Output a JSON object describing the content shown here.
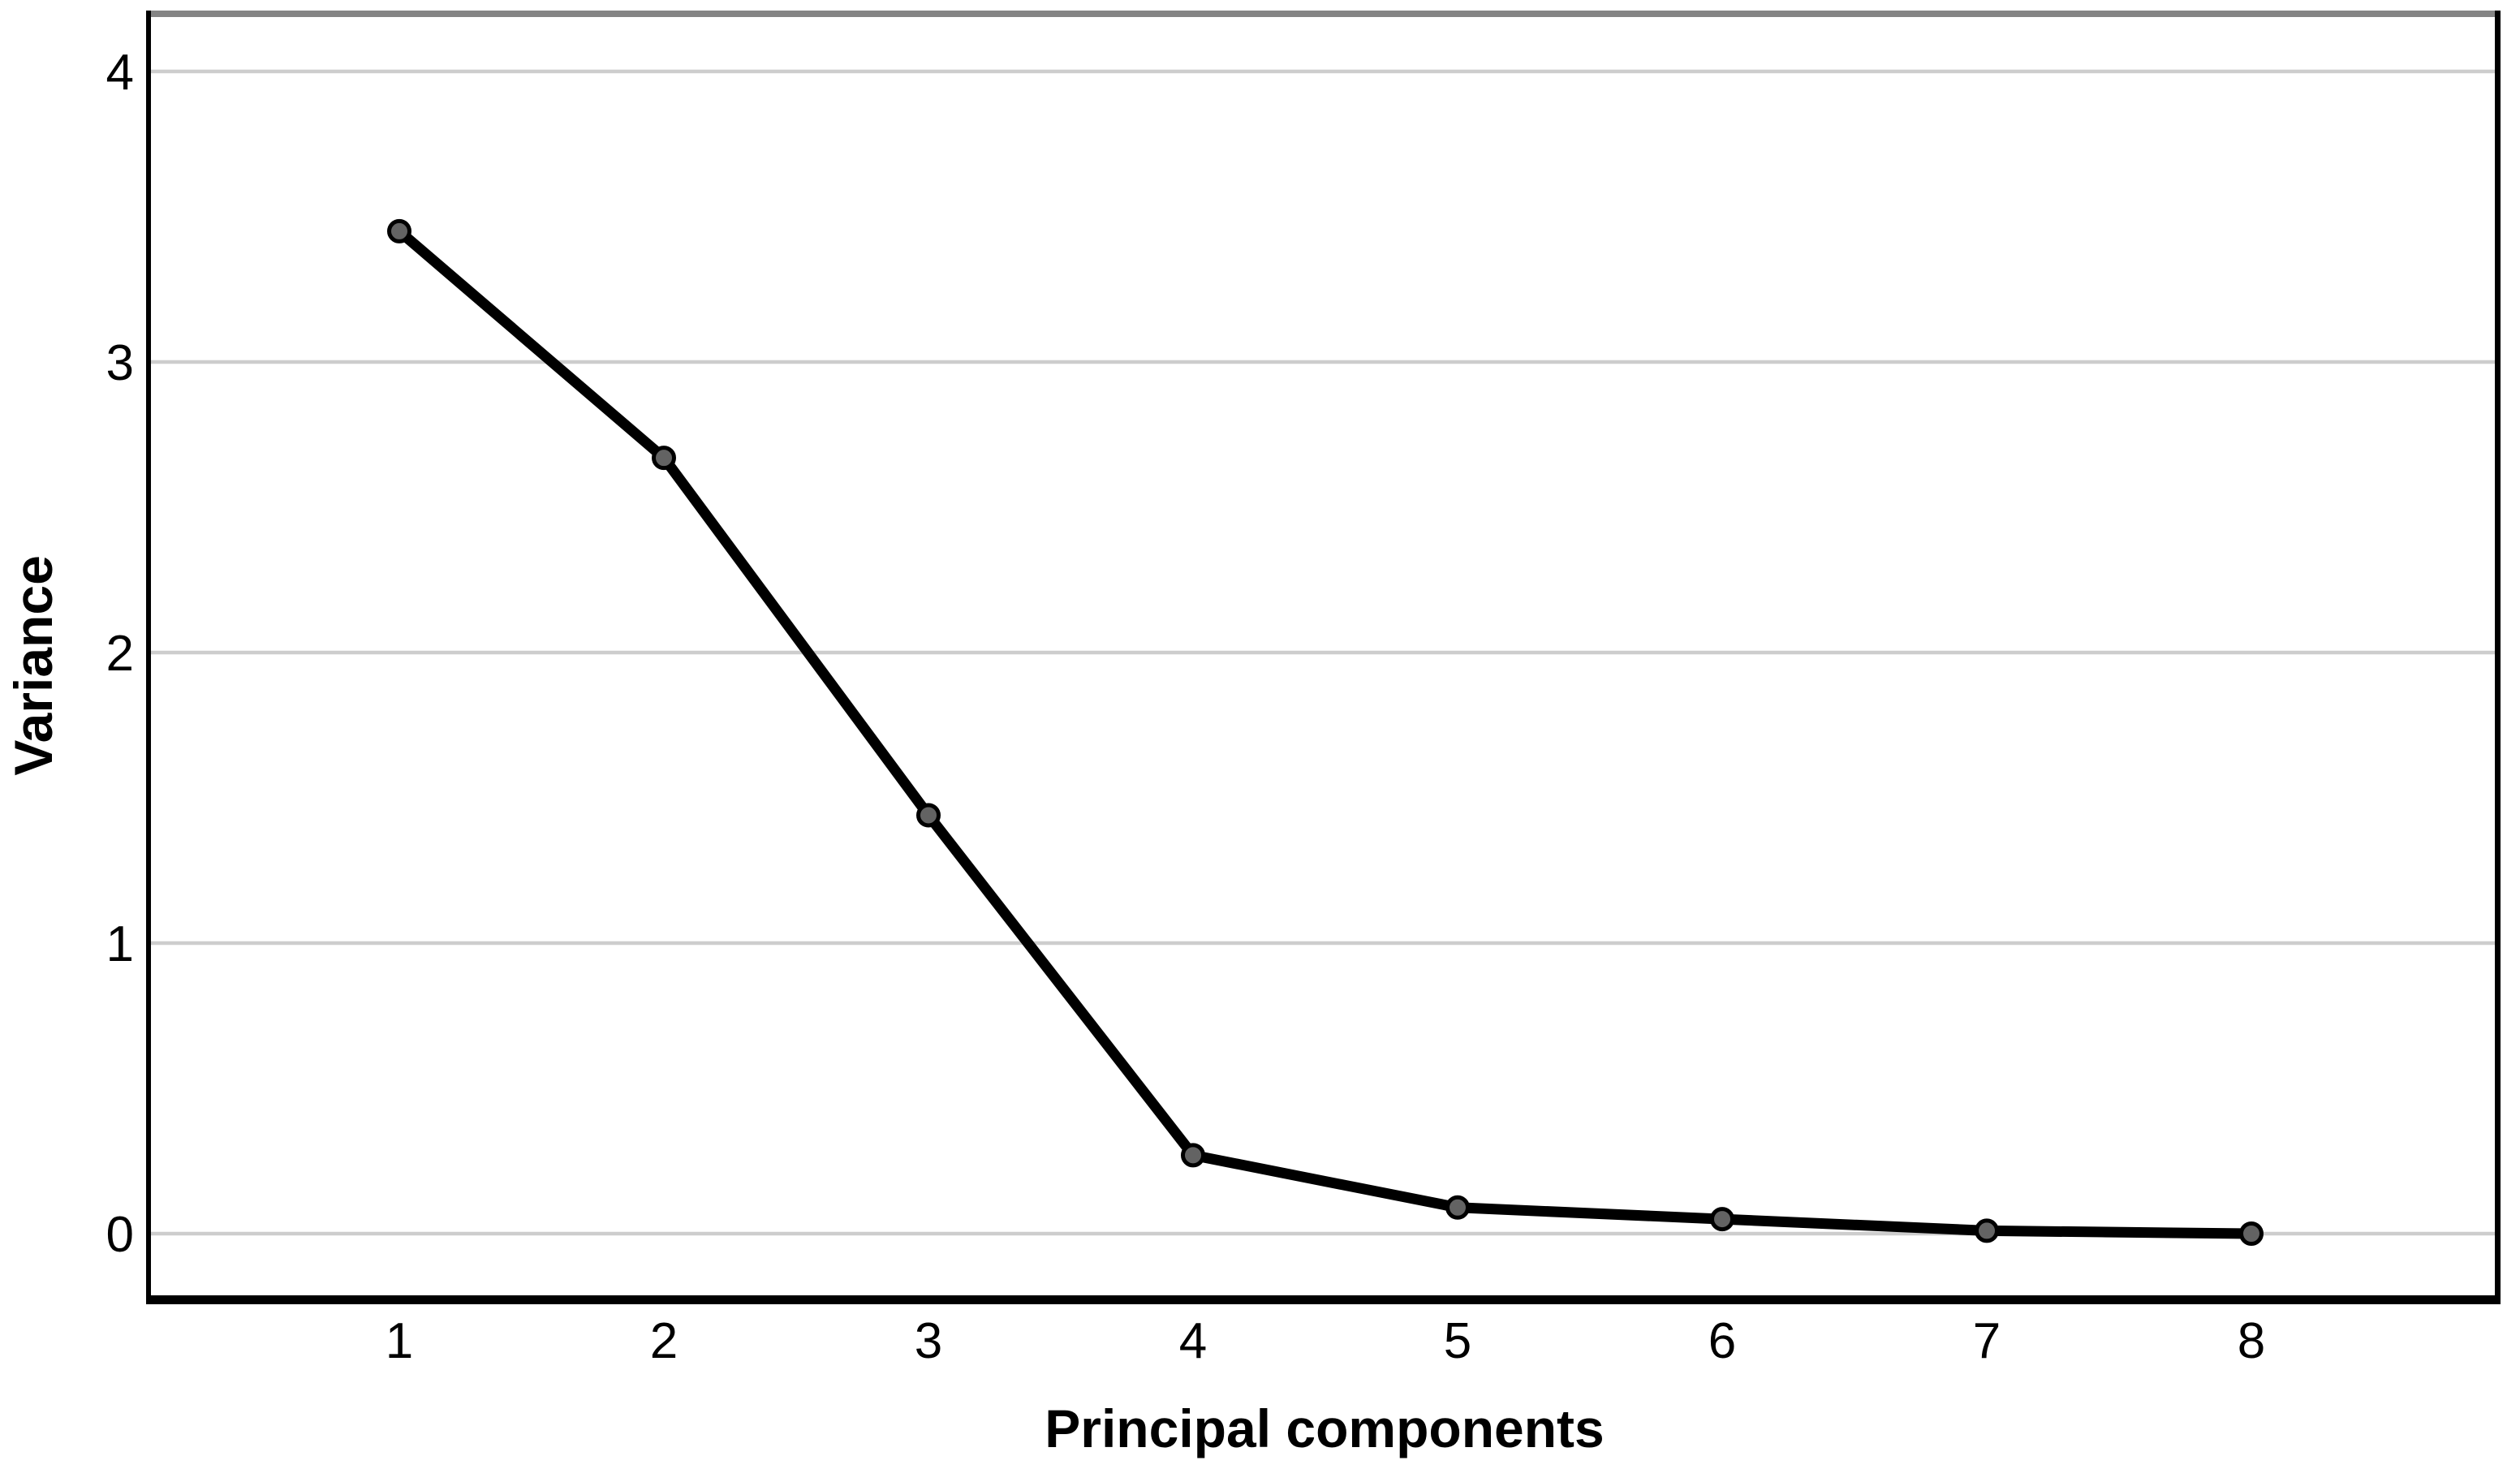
{
  "chart_data": {
    "type": "line",
    "title": "",
    "xlabel": "Principal components",
    "ylabel": "Variance",
    "x": [
      1,
      2,
      3,
      4,
      5,
      6,
      7,
      8
    ],
    "x_tick_labels": [
      "1",
      "2",
      "3",
      "4",
      "5",
      "6",
      "7",
      "8"
    ],
    "series": [
      {
        "name": "Variance",
        "values": [
          3.45,
          2.67,
          1.44,
          0.27,
          0.09,
          0.05,
          0.01,
          0.0
        ]
      }
    ],
    "y_ticks": [
      0,
      1,
      2,
      3,
      4
    ],
    "y_tick_labels": [
      "0",
      "1",
      "2",
      "3",
      "4"
    ],
    "ylim": [
      -0.22,
      4.22
    ],
    "xlim": [
      0.05,
      8.92
    ],
    "grid": "horizontal-only",
    "legend_position": "none",
    "marker": "circle",
    "colors": {
      "background": "#ffffff",
      "line": "#000000",
      "marker_fill": "#636363",
      "marker_stroke": "#000000",
      "gridline": "#cdcdcd",
      "top_border": "#848484",
      "axis": "#000000",
      "text": "#000000"
    }
  }
}
